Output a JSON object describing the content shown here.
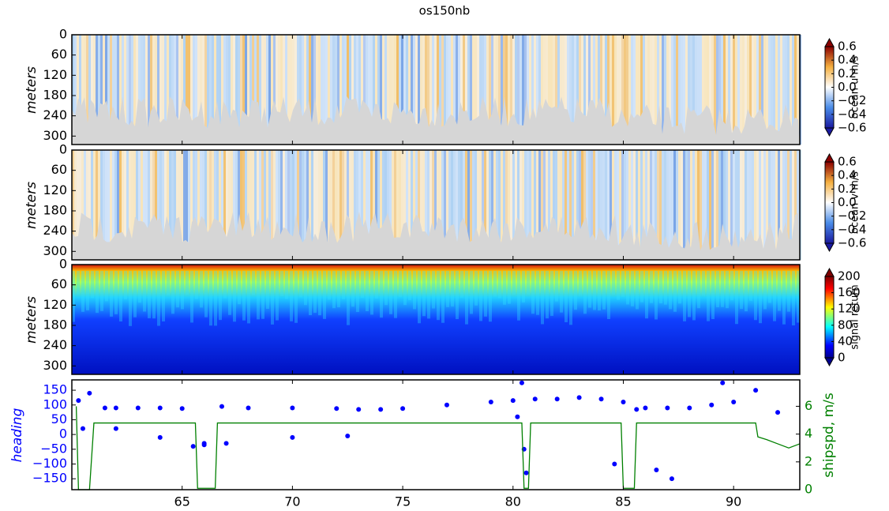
{
  "chart_data": [
    {
      "type": "heatmap",
      "title": "os150nb",
      "ylabel": "meters",
      "ylim": [
        325,
        0
      ],
      "yticks": [
        0,
        60,
        120,
        180,
        240,
        300
      ],
      "colorbar": {
        "label": "ocean u m/s",
        "cmap": "diverging",
        "lim": [
          -0.6,
          0.6
        ],
        "ticks": [
          0.6,
          0.4,
          0.2,
          {
            "value": 0,
            "label": "0.0"
          },
          {
            "value": -0.2,
            "label": "−0.2"
          },
          {
            "value": -0.4,
            "label": "−0.4"
          },
          {
            "value": -0.6,
            "label": "−0.6"
          }
        ]
      }
    },
    {
      "type": "heatmap",
      "ylabel": "meters",
      "ylim": [
        325,
        0
      ],
      "yticks": [
        0,
        60,
        120,
        180,
        240,
        300
      ],
      "colorbar": {
        "label": "ocean v m/s",
        "cmap": "diverging",
        "lim": [
          -0.6,
          0.6
        ],
        "ticks": [
          0.6,
          0.4,
          0.2,
          {
            "value": 0,
            "label": "0.0"
          },
          {
            "value": -0.2,
            "label": "−0.2"
          },
          {
            "value": -0.4,
            "label": "−0.4"
          },
          {
            "value": -0.6,
            "label": "−0.6"
          }
        ]
      }
    },
    {
      "type": "heatmap",
      "ylabel": "meters",
      "ylim": [
        325,
        0
      ],
      "yticks": [
        0,
        60,
        120,
        180,
        240,
        300
      ],
      "colorbar": {
        "label": "signal return",
        "cmap": "jet",
        "lim": [
          0,
          200
        ],
        "ticks": [
          200,
          160,
          120,
          80,
          40,
          0
        ]
      }
    },
    {
      "type": "scatter",
      "ylabel": "heading",
      "y2label": "shipspd, m/s",
      "xlim": [
        60,
        93
      ],
      "xticks": [
        65,
        70,
        75,
        80,
        85,
        90
      ],
      "ylim": [
        -187,
        185
      ],
      "yticks": [
        150,
        100,
        50,
        0,
        {
          "value": -50,
          "label": "−50"
        },
        {
          "value": -100,
          "label": "−100"
        },
        {
          "value": -150,
          "label": "−150"
        }
      ],
      "y2lim": [
        0,
        7.9
      ],
      "y2ticks": [
        0,
        2,
        4,
        6
      ],
      "ycolor": "#0000ff",
      "y2color": "#008000",
      "series": [
        {
          "mark": "dot",
          "color": "#0000ff",
          "x": [
            60.3,
            60.8,
            61.5,
            62,
            63,
            64,
            65,
            65.5,
            66,
            66.8,
            68,
            70,
            72,
            73,
            74,
            75,
            77,
            79,
            80,
            80.4,
            80.5,
            80.6,
            81,
            82,
            83,
            84,
            85,
            85.6,
            86,
            87,
            88,
            89,
            89.5,
            90,
            91,
            92,
            60.5,
            62,
            64,
            66,
            67,
            70,
            72.5,
            80.2,
            84.6,
            86.5,
            87.2
          ],
          "values": [
            115,
            140,
            90,
            90,
            90,
            90,
            88,
            -40,
            -30,
            95,
            90,
            90,
            88,
            85,
            85,
            88,
            100,
            110,
            115,
            175,
            -50,
            -130,
            120,
            120,
            125,
            120,
            110,
            85,
            90,
            90,
            90,
            100,
            175,
            110,
            150,
            75,
            20,
            20,
            -10,
            -35,
            -30,
            -10,
            -5,
            60,
            -100,
            -120,
            -150
          ]
        },
        {
          "mark": "line",
          "color": "#008000",
          "axis": "y2",
          "x": [
            60.2,
            60.3,
            60.8,
            61.0,
            65.6,
            65.7,
            66.5,
            66.6,
            80.4,
            80.5,
            80.7,
            80.8,
            84.9,
            85.0,
            85.5,
            85.6,
            91.0,
            91.1,
            91.5,
            92,
            92.5,
            93
          ],
          "values": [
            6,
            0,
            0,
            4.8,
            4.8,
            0.1,
            0.1,
            4.8,
            4.8,
            0.1,
            0.1,
            4.8,
            4.8,
            0.1,
            0.1,
            4.8,
            4.8,
            3.8,
            3.6,
            3.3,
            3.0,
            3.3
          ]
        }
      ]
    }
  ]
}
